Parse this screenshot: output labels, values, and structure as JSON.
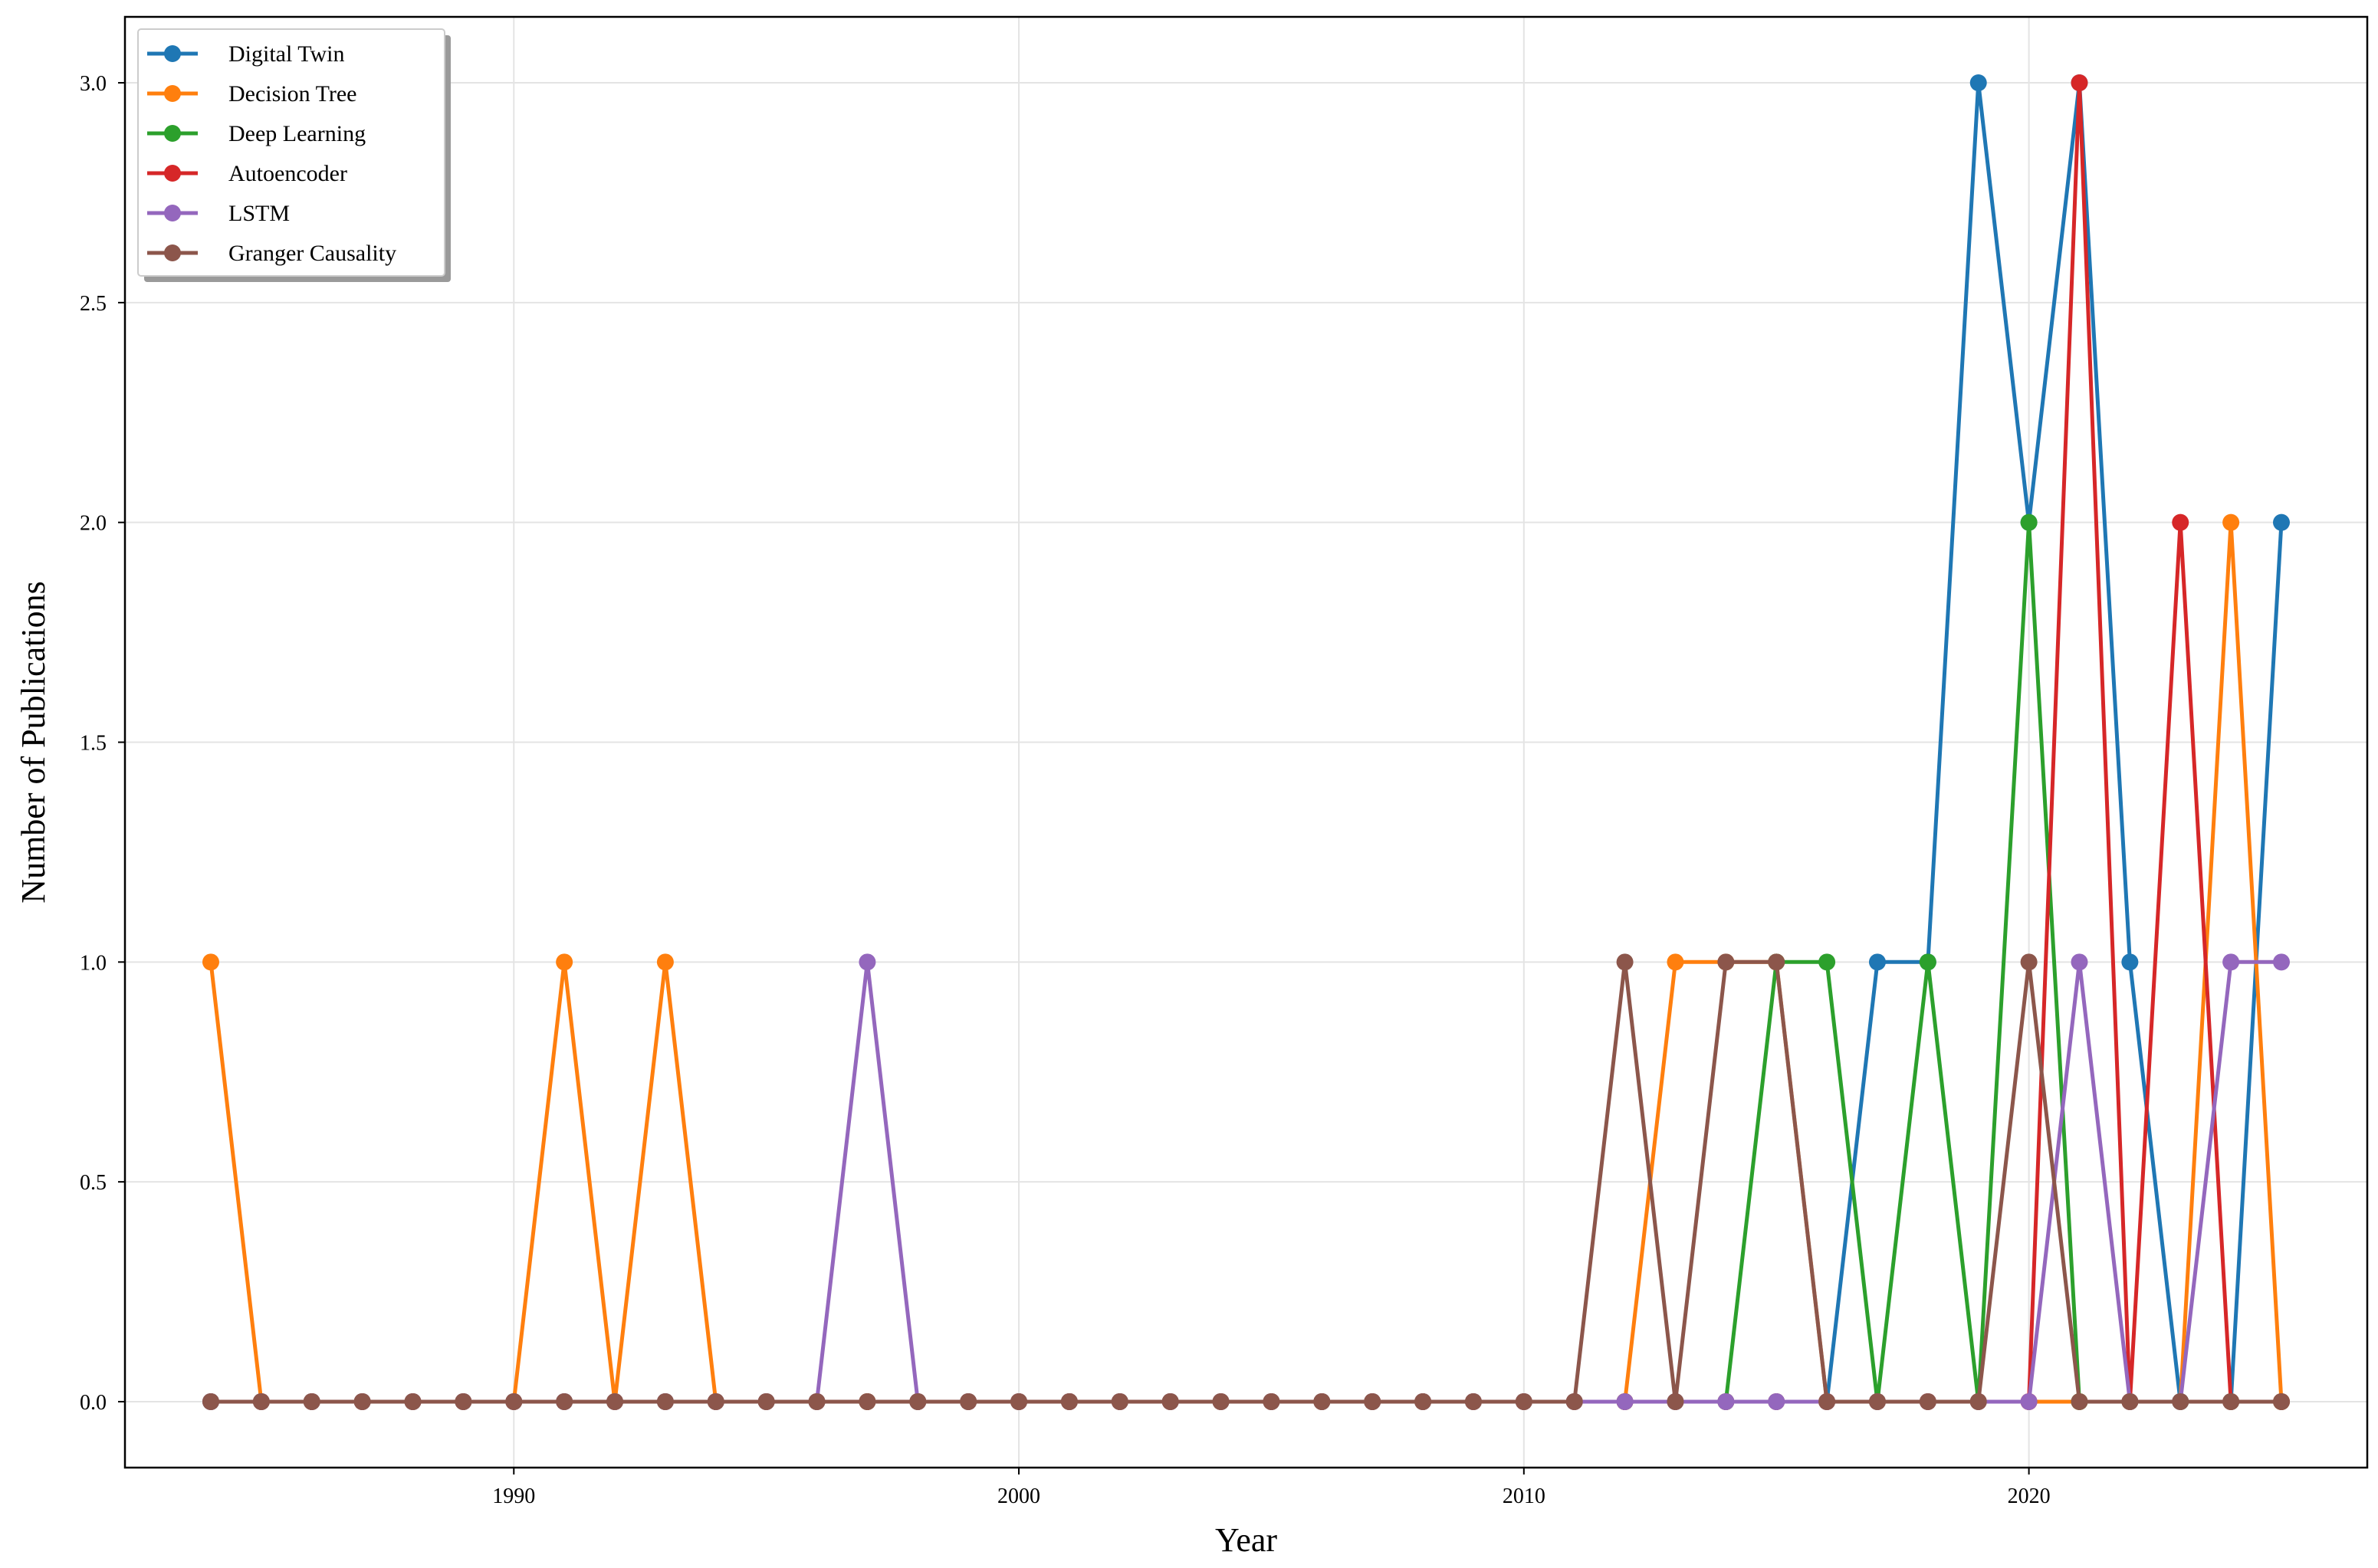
{
  "chart_data": {
    "type": "line",
    "title": "",
    "xlabel": "Year",
    "ylabel": "Number of Publications",
    "xlim": [
      1982.3,
      2026.7
    ],
    "ylim": [
      -0.15,
      3.15
    ],
    "xticks": [
      1990,
      2000,
      2010,
      2020
    ],
    "yticks": [
      "0.0",
      "0.5",
      "1.0",
      "1.5",
      "2.0",
      "2.5",
      "3.0"
    ],
    "grid": true,
    "legend_position": "top-left",
    "x": [
      1984,
      1985,
      1986,
      1987,
      1988,
      1989,
      1990,
      1991,
      1992,
      1993,
      1994,
      1995,
      1996,
      1997,
      1998,
      1999,
      2000,
      2001,
      2002,
      2003,
      2004,
      2005,
      2006,
      2007,
      2008,
      2009,
      2010,
      2011,
      2012,
      2013,
      2014,
      2015,
      2016,
      2017,
      2018,
      2019,
      2020,
      2021,
      2022,
      2023,
      2024,
      2025
    ],
    "series": [
      {
        "name": "Digital Twin",
        "color": "#1f77b4",
        "values": [
          0,
          0,
          0,
          0,
          0,
          0,
          0,
          0,
          0,
          0,
          0,
          0,
          0,
          0,
          0,
          0,
          0,
          0,
          0,
          0,
          0,
          0,
          0,
          0,
          0,
          0,
          0,
          0,
          0,
          0,
          0,
          0,
          0,
          1,
          1,
          3,
          2,
          3,
          1,
          0,
          0,
          2
        ]
      },
      {
        "name": "Decision Tree",
        "color": "#ff7f0e",
        "values": [
          1,
          0,
          0,
          0,
          0,
          0,
          0,
          1,
          0,
          1,
          0,
          0,
          0,
          0,
          0,
          0,
          0,
          0,
          0,
          0,
          0,
          0,
          0,
          0,
          0,
          0,
          0,
          0,
          0,
          1,
          1,
          1,
          0,
          0,
          0,
          0,
          0,
          0,
          0,
          0,
          2,
          0
        ]
      },
      {
        "name": "Deep Learning",
        "color": "#2ca02c",
        "values": [
          0,
          0,
          0,
          0,
          0,
          0,
          0,
          0,
          0,
          0,
          0,
          0,
          0,
          0,
          0,
          0,
          0,
          0,
          0,
          0,
          0,
          0,
          0,
          0,
          0,
          0,
          0,
          0,
          0,
          0,
          0,
          1,
          1,
          0,
          1,
          0,
          2,
          0,
          0,
          0,
          0,
          0
        ]
      },
      {
        "name": "Autoencoder",
        "color": "#d62728",
        "values": [
          0,
          0,
          0,
          0,
          0,
          0,
          0,
          0,
          0,
          0,
          0,
          0,
          0,
          0,
          0,
          0,
          0,
          0,
          0,
          0,
          0,
          0,
          0,
          0,
          0,
          0,
          0,
          0,
          0,
          0,
          0,
          0,
          0,
          0,
          0,
          0,
          0,
          3,
          0,
          2,
          0,
          0
        ]
      },
      {
        "name": "LSTM",
        "color": "#9467bd",
        "values": [
          0,
          0,
          0,
          0,
          0,
          0,
          0,
          0,
          0,
          0,
          0,
          0,
          0,
          1,
          0,
          0,
          0,
          0,
          0,
          0,
          0,
          0,
          0,
          0,
          0,
          0,
          0,
          0,
          0,
          0,
          0,
          0,
          0,
          0,
          0,
          0,
          0,
          1,
          0,
          0,
          1,
          1
        ]
      },
      {
        "name": "Granger Causality",
        "color": "#8c564b",
        "values": [
          0,
          0,
          0,
          0,
          0,
          0,
          0,
          0,
          0,
          0,
          0,
          0,
          0,
          0,
          0,
          0,
          0,
          0,
          0,
          0,
          0,
          0,
          0,
          0,
          0,
          0,
          0,
          0,
          1,
          0,
          1,
          1,
          0,
          0,
          0,
          0,
          1,
          0,
          0,
          0,
          0,
          0
        ]
      }
    ]
  }
}
